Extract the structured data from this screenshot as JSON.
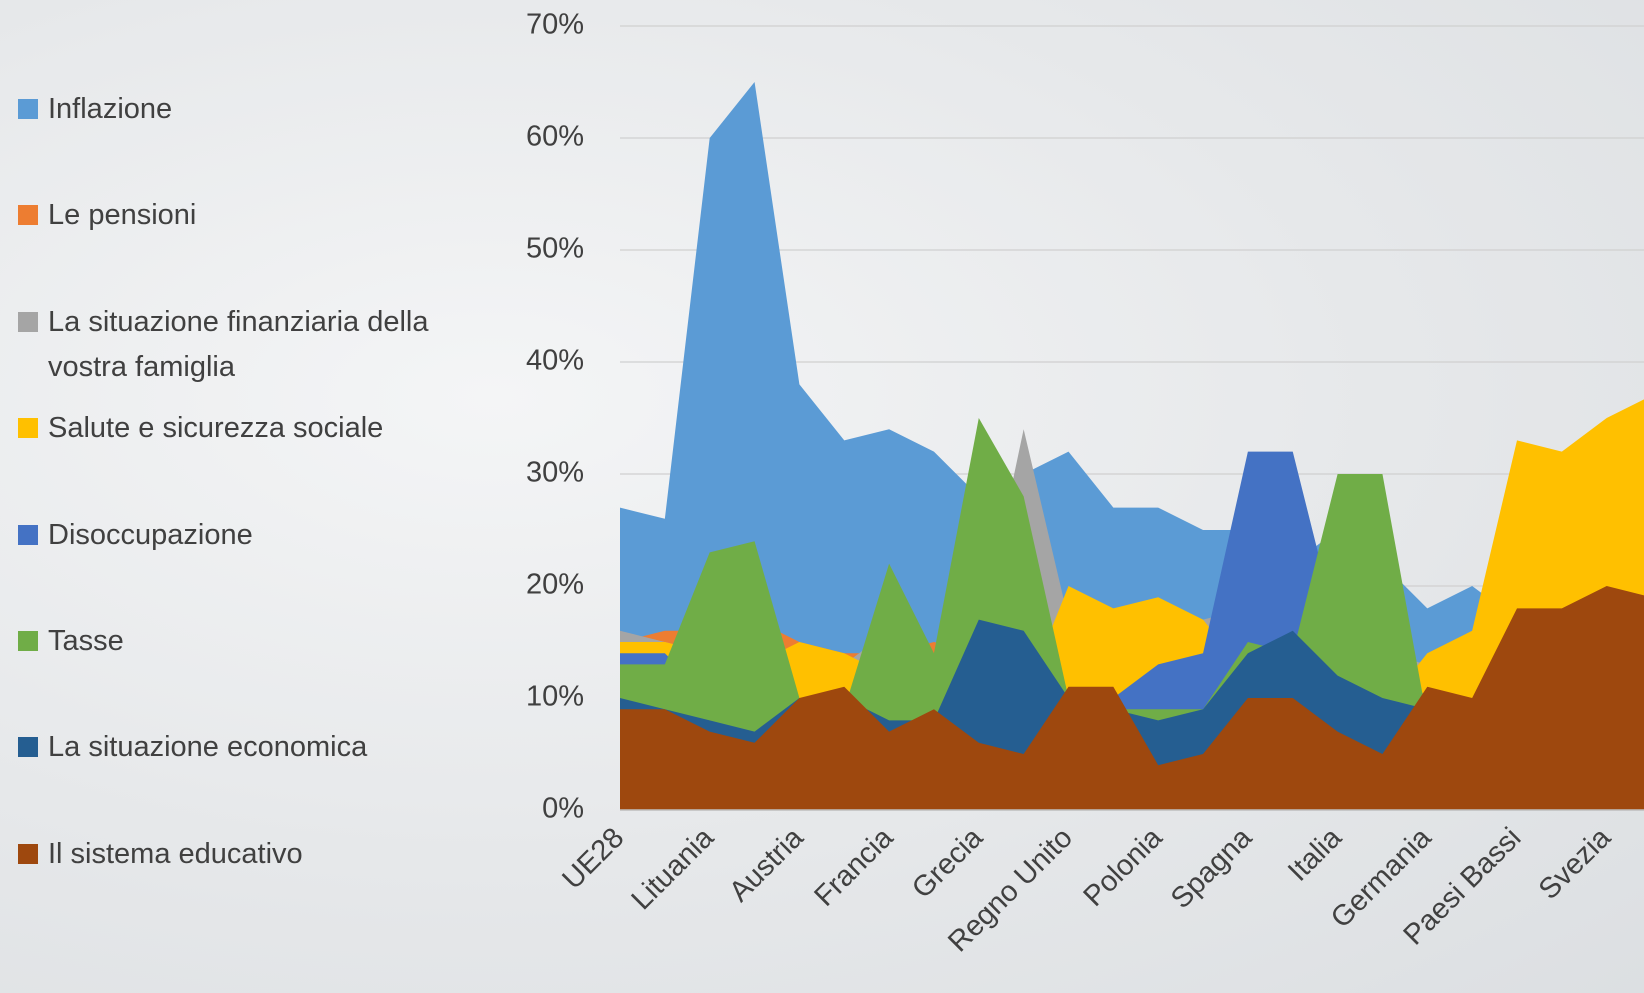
{
  "chart_data": {
    "type": "area",
    "categories": [
      "UE28",
      null,
      "Lituania",
      null,
      "Austria",
      null,
      "Francia",
      null,
      "Grecia",
      null,
      "Regno Unito",
      null,
      "Polonia",
      null,
      "Spagna",
      null,
      "Italia",
      null,
      "Germania",
      null,
      "Paesi Bassi",
      null,
      "Svezia",
      null
    ],
    "series": [
      {
        "name": "Inflazione",
        "color": "#5b9bd5",
        "values": [
          27,
          26,
          60,
          65,
          38,
          33,
          34,
          32,
          28,
          30,
          32,
          27,
          27,
          25,
          25,
          22,
          25,
          22,
          18,
          20,
          17,
          16,
          15,
          15
        ]
      },
      {
        "name": "Le pensioni",
        "color": "#ed7d31",
        "values": [
          15,
          16,
          16,
          17,
          15,
          14,
          14,
          15,
          14,
          13,
          12,
          12,
          12,
          12,
          13,
          13,
          12,
          12,
          13,
          16,
          16,
          15,
          14,
          14
        ]
      },
      {
        "name": "La situazione finanziaria della vostra famiglia",
        "color": "#a5a5a5",
        "values": [
          16,
          15,
          14,
          14,
          13,
          13,
          16,
          14,
          15,
          34,
          17,
          16,
          17,
          17,
          18,
          16,
          15,
          14,
          13,
          14,
          14,
          13,
          12,
          12
        ]
      },
      {
        "name": "Salute e sicurezza sociale",
        "color": "#ffc000",
        "values": [
          15,
          15,
          14,
          13,
          15,
          14,
          12,
          12,
          12,
          10,
          20,
          18,
          19,
          17,
          12,
          11,
          10,
          9,
          14,
          16,
          33,
          32,
          35,
          37
        ]
      },
      {
        "name": "Disoccupazione",
        "color": "#4472c4",
        "values": [
          14,
          14,
          10,
          9,
          9,
          8,
          8,
          8,
          9,
          8,
          9,
          10,
          13,
          14,
          32,
          32,
          16,
          14,
          10,
          8,
          7,
          6,
          6,
          6
        ]
      },
      {
        "name": "Tasse",
        "color": "#70ad47",
        "values": [
          13,
          13,
          23,
          24,
          10,
          9,
          22,
          14,
          35,
          28,
          10,
          9,
          9,
          9,
          15,
          14,
          30,
          30,
          8,
          10,
          11,
          9,
          8,
          8
        ]
      },
      {
        "name": "La situazione economica",
        "color": "#255e91",
        "values": [
          10,
          9,
          8,
          7,
          10,
          10,
          8,
          8,
          17,
          16,
          10,
          9,
          8,
          9,
          14,
          16,
          12,
          10,
          9,
          10,
          9,
          8,
          8,
          7
        ]
      },
      {
        "name": "Il sistema educativo",
        "color": "#9e480e",
        "values": [
          9,
          9,
          7,
          6,
          10,
          11,
          7,
          9,
          6,
          5,
          11,
          11,
          4,
          5,
          10,
          10,
          7,
          5,
          11,
          10,
          18,
          18,
          20,
          19
        ]
      }
    ],
    "ylim": [
      0,
      70
    ],
    "yticks": [
      {
        "value": 0,
        "label": "0%"
      },
      {
        "value": 10,
        "label": "10%"
      },
      {
        "value": 20,
        "label": "20%"
      },
      {
        "value": 30,
        "label": "30%"
      },
      {
        "value": 40,
        "label": "40%"
      },
      {
        "value": 50,
        "label": "50%"
      },
      {
        "value": 60,
        "label": "60%"
      },
      {
        "value": 70,
        "label": "70%"
      }
    ],
    "grid": true,
    "legend": "left"
  }
}
